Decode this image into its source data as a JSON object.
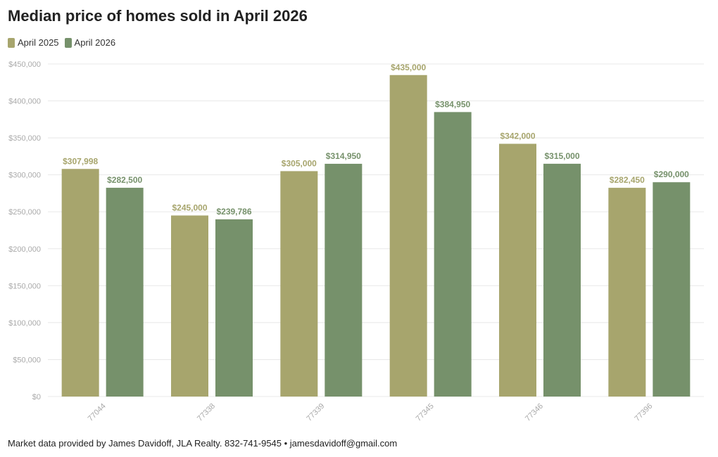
{
  "title": "Median price of homes sold in April 2026",
  "footer": "Market data provided by James Davidoff, JLA Realty. 832-741-9545 • jamesdavidoff@gmail.com",
  "colors": {
    "april_2025": "#a7a56d",
    "april_2026": "#76916b",
    "grid": "#e8e8e8",
    "tick_text": "#aaaaaa"
  },
  "chart_data": {
    "type": "bar",
    "title": "Median price of homes sold in April 2026",
    "categories": [
      "77044",
      "77338",
      "77339",
      "77345",
      "77346",
      "77396"
    ],
    "series": [
      {
        "name": "April 2025",
        "values": [
          307998,
          245000,
          305000,
          435000,
          342000,
          282450
        ],
        "labels": [
          "$307,998",
          "$245,000",
          "$305,000",
          "$435,000",
          "$342,000",
          "$282,450"
        ]
      },
      {
        "name": "April 2026",
        "values": [
          282500,
          239786,
          314950,
          384950,
          315000,
          290000
        ],
        "labels": [
          "$282,500",
          "$239,786",
          "$314,950",
          "$384,950",
          "$315,000",
          "$290,000"
        ]
      }
    ],
    "ylim": [
      0,
      450000
    ],
    "yticks": [
      0,
      50000,
      100000,
      150000,
      200000,
      250000,
      300000,
      350000,
      400000,
      450000
    ],
    "ytick_labels": [
      "$0",
      "$50,000",
      "$100,000",
      "$150,000",
      "$200,000",
      "$250,000",
      "$300,000",
      "$350,000",
      "$400,000",
      "$450,000"
    ],
    "xlabel": "",
    "ylabel": "",
    "grid": true,
    "legend": "top-left"
  }
}
